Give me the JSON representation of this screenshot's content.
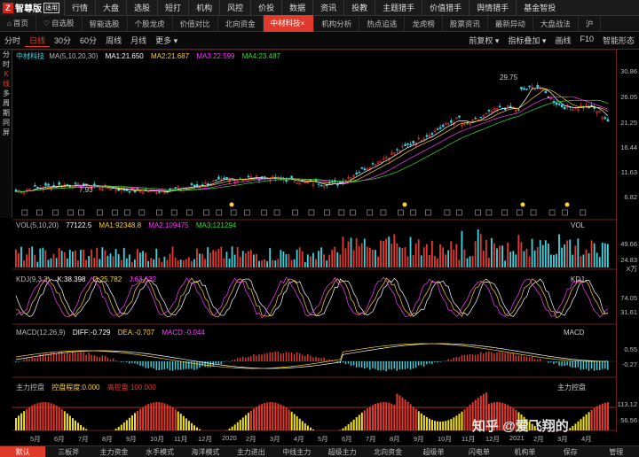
{
  "app": {
    "name": "智尊版",
    "badge": "适用",
    "logo_char": "Z"
  },
  "menu": [
    "行情",
    "大盘",
    "选股",
    "短打",
    "机构",
    "风控",
    "价投",
    "数据",
    "资讯",
    "投教",
    "主题猎手",
    "价值猎手",
    "舆情猎手",
    "基金智投"
  ],
  "tabs": [
    {
      "label": "首页",
      "icon": "home-icon"
    },
    {
      "label": "自选股",
      "icon": "heart-icon"
    },
    {
      "label": "智能选股"
    },
    {
      "label": "个股龙虎"
    },
    {
      "label": "价值对比"
    },
    {
      "label": "北向资金"
    },
    {
      "label": "中材科技",
      "active": true,
      "icon": "close-icon"
    },
    {
      "label": "机构分析"
    },
    {
      "label": "热点追逃"
    },
    {
      "label": "龙虎榜"
    },
    {
      "label": "股票资讯"
    },
    {
      "label": "最新异动"
    },
    {
      "label": "大盘战法"
    },
    {
      "label": "沪"
    }
  ],
  "periods": [
    {
      "label": "分时"
    },
    {
      "label": "日线",
      "active": true
    },
    {
      "label": "30分"
    },
    {
      "label": "60分"
    },
    {
      "label": "周线"
    },
    {
      "label": "月线"
    },
    {
      "label": "更多 ▾"
    }
  ],
  "toolbar_right": [
    "前复权 ▾",
    "指标叠加 ▾",
    "画线",
    "F10",
    "智能形态"
  ],
  "side": [
    {
      "label": "分"
    },
    {
      "label": "时"
    },
    {
      "label": "K",
      "active": true
    },
    {
      "label": "线",
      "active": true
    },
    {
      "label": "多"
    },
    {
      "label": "周"
    },
    {
      "label": "期"
    },
    {
      "label": "同"
    },
    {
      "label": "屏"
    }
  ],
  "main": {
    "stock": "中材科技",
    "ma_label": "MA(5,10,20,30)",
    "ma1": "MA1:21.650",
    "ma2": "MA2:21.687",
    "ma3": "MA3:22.599",
    "ma4": "MA4:23.487",
    "high_mark": "29.75",
    "low_mark": "7.93",
    "axis": [
      "30.86",
      "26.05",
      "21.25",
      "16.44",
      "11.63",
      "6.82"
    ]
  },
  "vol": {
    "label": "VOL(5,10,20)",
    "value": "77122.5",
    "ma1": "MA1:92348.8",
    "ma2": "MA2:109475",
    "ma3": "MA3:121294",
    "tag": "VOL",
    "axis": [
      "49.66",
      "24.83"
    ],
    "unit": "X万"
  },
  "kdj": {
    "label": "KDJ(9,3,3)",
    "k": "K:38.398",
    "d": "D:25.782",
    "j": "J:63.632",
    "tag": "KDJ",
    "axis": [
      "74.05",
      "31.61"
    ]
  },
  "macd": {
    "label": "MACD(12,26,9)",
    "diff": "DIFF:-0.729",
    "dea": "DEA:-0.707",
    "macd": "MACD:-0.044",
    "tag": "MACD",
    "axis": [
      "0.55",
      "-0.27"
    ]
  },
  "ctrl": {
    "label": "主力控盘",
    "level": "控盘程度:0.000",
    "high": "高控盘:100.000",
    "tag": "主力控盘",
    "axis": [
      "113.12",
      "56.56"
    ]
  },
  "xaxis": [
    "5月",
    "6月",
    "7月",
    "8月",
    "9月",
    "10月",
    "11月",
    "12月",
    "2020",
    "2月",
    "3月",
    "4月",
    "5月",
    "6月",
    "7月",
    "8月",
    "9月",
    "10月",
    "11月",
    "12月",
    "2021",
    "2月",
    "3月",
    "4月"
  ],
  "bottom": [
    "默认",
    "三板斧",
    "主力资金",
    "水手模式",
    "海洋模式",
    "主力进出",
    "中线主力",
    "超级主力",
    "北向资金",
    "超级单",
    "闪电单",
    "机构单",
    "保存",
    "管理"
  ],
  "watermark": "知乎 @爱飞翔的",
  "colors": {
    "up": "#e23a30",
    "down": "#3fd4e0",
    "ma1": "#ffffff",
    "ma2": "#ffd21e",
    "ma3": "#ff38ff",
    "ma4": "#32dc32",
    "accent": "#e03a2c"
  }
}
